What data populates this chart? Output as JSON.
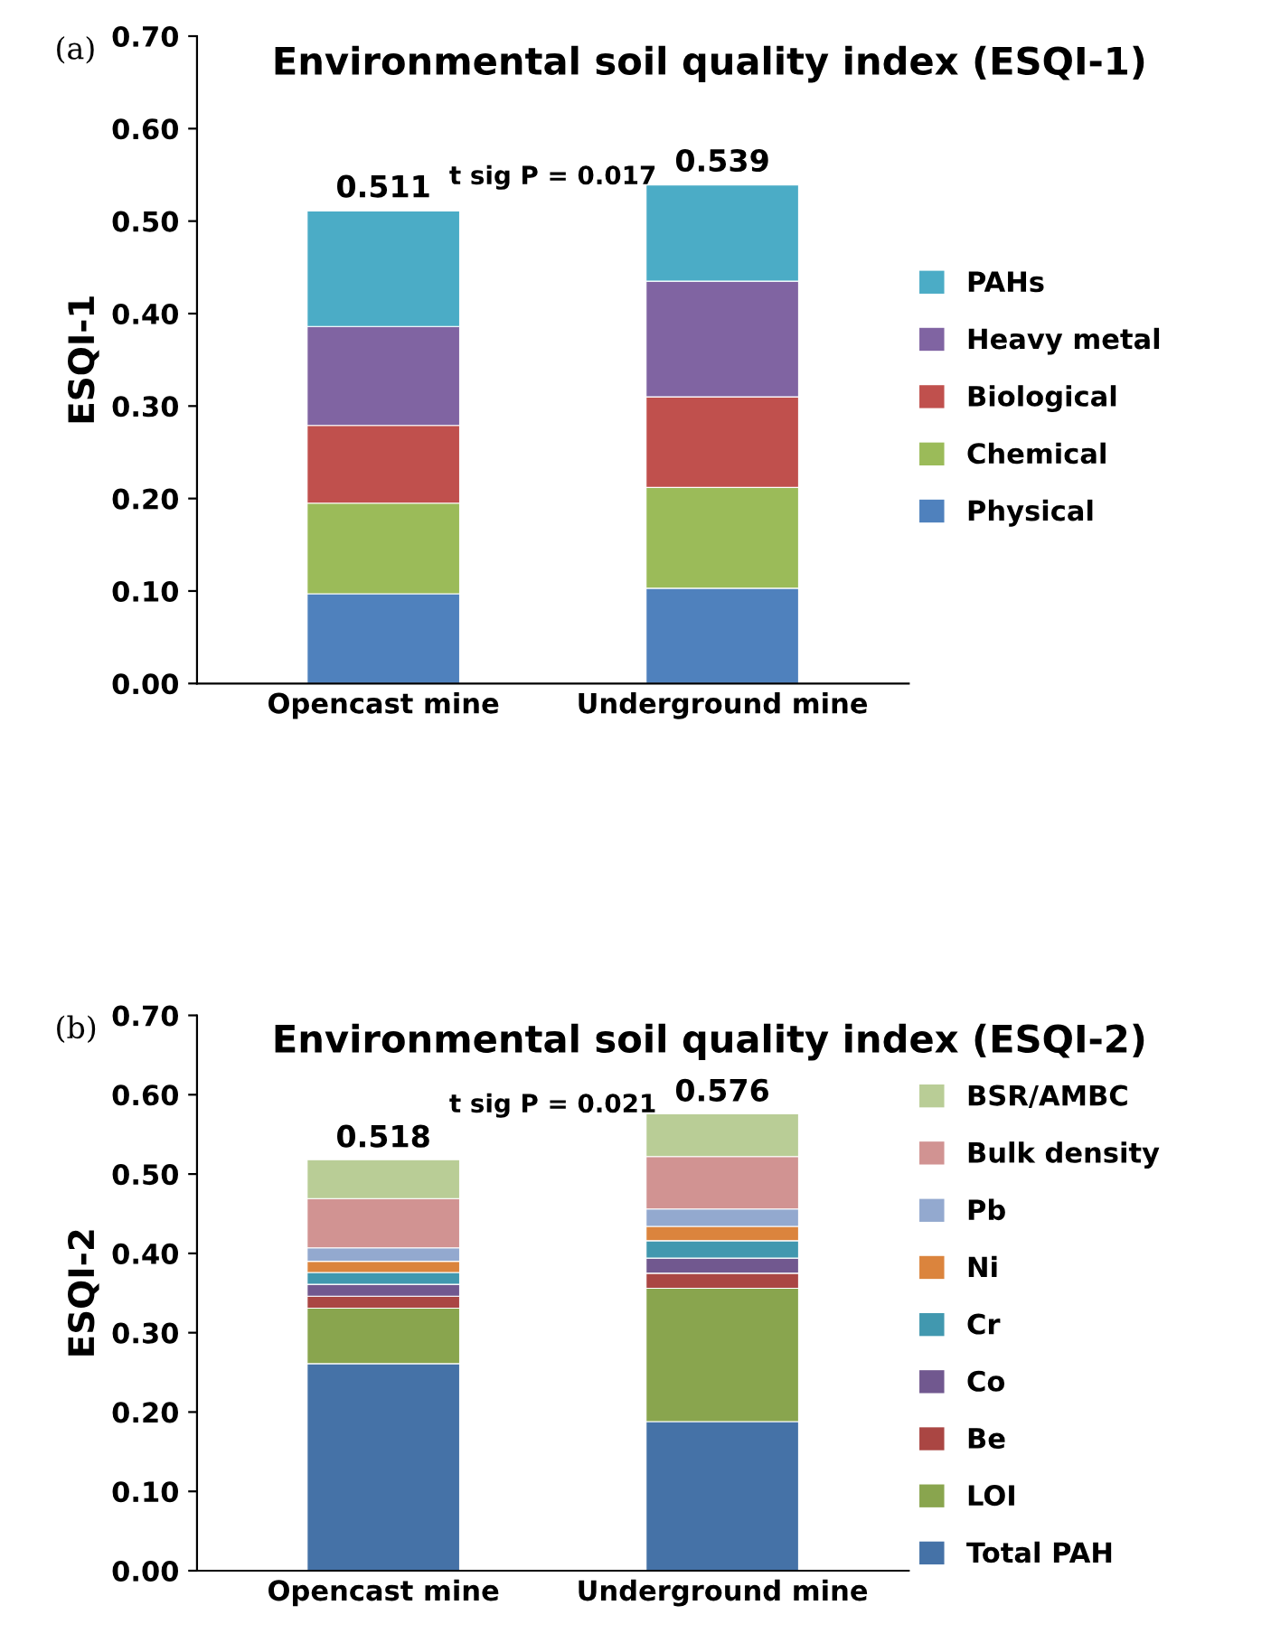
{
  "chart_data": [
    {
      "type": "bar",
      "title": "Environmental soil quality index (ESQI-1)",
      "ylabel": "ESQI-1",
      "stacked": true,
      "categories": [
        "Opencast mine",
        "Underground mine"
      ],
      "series": [
        {
          "name": "Physical",
          "color": "#4f81bd",
          "values": [
            0.097,
            0.103
          ]
        },
        {
          "name": "Chemical",
          "color": "#9bbb59",
          "values": [
            0.098,
            0.109
          ]
        },
        {
          "name": "Biological",
          "color": "#c0504d",
          "values": [
            0.084,
            0.098
          ]
        },
        {
          "name": "Heavy metal",
          "color": "#8064a2",
          "values": [
            0.107,
            0.125
          ]
        },
        {
          "name": "PAHs",
          "color": "#4bacc6",
          "values": [
            0.125,
            0.104
          ]
        }
      ],
      "totals": [
        "0.511",
        "0.539"
      ],
      "ylim": [
        0,
        0.7
      ],
      "yticks": [
        {
          "value": 0,
          "label": "0.00"
        },
        {
          "value": 0.1,
          "label": "0.10"
        },
        {
          "value": 0.2,
          "label": "0.20"
        },
        {
          "value": 0.3,
          "label": "0.30"
        },
        {
          "value": 0.4,
          "label": "0.40"
        },
        {
          "value": 0.5,
          "label": "0.50"
        },
        {
          "value": 0.6,
          "label": "0.60"
        },
        {
          "value": 0.7,
          "label": "0.70"
        }
      ],
      "annotations": [
        "(a)",
        "t sig P = 0.017"
      ],
      "legend": "right",
      "grid": false
    },
    {
      "type": "bar",
      "title": "Environmental soil quality index (ESQI-2)",
      "ylabel": "ESQI-2",
      "stacked": true,
      "categories": [
        "Opencast mine",
        "Underground mine"
      ],
      "series": [
        {
          "name": "Total PAH",
          "color": "#4572a7",
          "values": [
            0.261,
            0.188
          ]
        },
        {
          "name": "LOI",
          "color": "#89a54e",
          "values": [
            0.07,
            0.168
          ]
        },
        {
          "name": "Be",
          "color": "#aa4643",
          "values": [
            0.015,
            0.019
          ]
        },
        {
          "name": "Co",
          "color": "#71588f",
          "values": [
            0.015,
            0.019
          ]
        },
        {
          "name": "Cr",
          "color": "#4198af",
          "values": [
            0.015,
            0.022
          ]
        },
        {
          "name": "Ni",
          "color": "#db843d",
          "values": [
            0.014,
            0.018
          ]
        },
        {
          "name": "Pb",
          "color": "#93a9cf",
          "values": [
            0.017,
            0.022
          ]
        },
        {
          "name": "Bulk density",
          "color": "#d19392",
          "values": [
            0.062,
            0.066
          ]
        },
        {
          "name": "BSR/AMBC",
          "color": "#b9cd96",
          "values": [
            0.049,
            0.054
          ]
        }
      ],
      "totals": [
        "0.518",
        "0.576"
      ],
      "ylim": [
        0,
        0.7
      ],
      "yticks": [
        {
          "value": 0,
          "label": "0.00"
        },
        {
          "value": 0.1,
          "label": "0.10"
        },
        {
          "value": 0.2,
          "label": "0.20"
        },
        {
          "value": 0.3,
          "label": "0.30"
        },
        {
          "value": 0.4,
          "label": "0.40"
        },
        {
          "value": 0.5,
          "label": "0.50"
        },
        {
          "value": 0.6,
          "label": "0.60"
        },
        {
          "value": 0.7,
          "label": "0.70"
        }
      ],
      "annotations": [
        "(b)",
        "t sig P = 0.021"
      ],
      "legend": "right",
      "grid": false
    }
  ]
}
